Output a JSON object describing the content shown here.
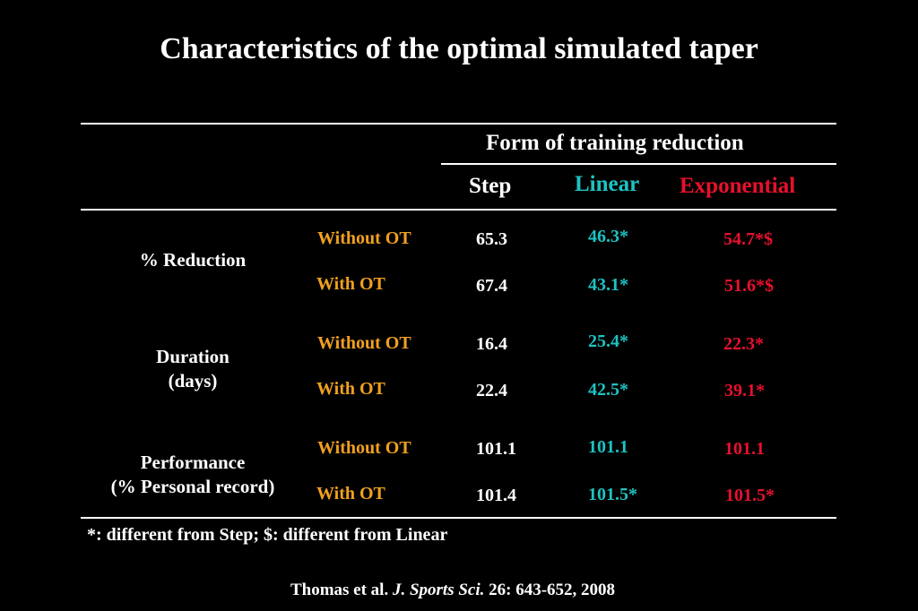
{
  "slide": {
    "title": "Characteristics of the optimal simulated taper",
    "header_group": "Form of training reduction",
    "columns": [
      {
        "label": "Step",
        "color": "#ffffff"
      },
      {
        "label": "Linear",
        "color": "#1fc2c2"
      },
      {
        "label": "Exponential",
        "color": "#e8102e"
      }
    ],
    "condition_color": "#f0a020",
    "rows": [
      {
        "label_line1": "% Reduction",
        "label_line2": "",
        "without_ot": {
          "label": "Without OT",
          "step": "65.3",
          "linear": "46.3*",
          "exponential": "54.7*$"
        },
        "with_ot": {
          "label": "With OT",
          "step": "67.4",
          "linear": "43.1*",
          "exponential": "51.6*$"
        }
      },
      {
        "label_line1": "Duration",
        "label_line2": "(days)",
        "without_ot": {
          "label": "Without OT",
          "step": "16.4",
          "linear": "25.4*",
          "exponential": "22.3*"
        },
        "with_ot": {
          "label": "With OT",
          "step": "22.4",
          "linear": "42.5*",
          "exponential": "39.1*"
        }
      },
      {
        "label_line1": "Performance",
        "label_line2": "(% Personal record)",
        "without_ot": {
          "label": "Without OT",
          "step": "101.1",
          "linear": "101.1",
          "exponential": "101.1"
        },
        "with_ot": {
          "label": "With OT",
          "step": "101.4",
          "linear": "101.5*",
          "exponential": "101.5*"
        }
      }
    ],
    "footnote": "*: different from Step; $: different from Linear",
    "citation": {
      "authors": "Thomas et al.",
      "journal": "J. Sports Sci.",
      "details": "26: 643-652, 2008"
    }
  }
}
